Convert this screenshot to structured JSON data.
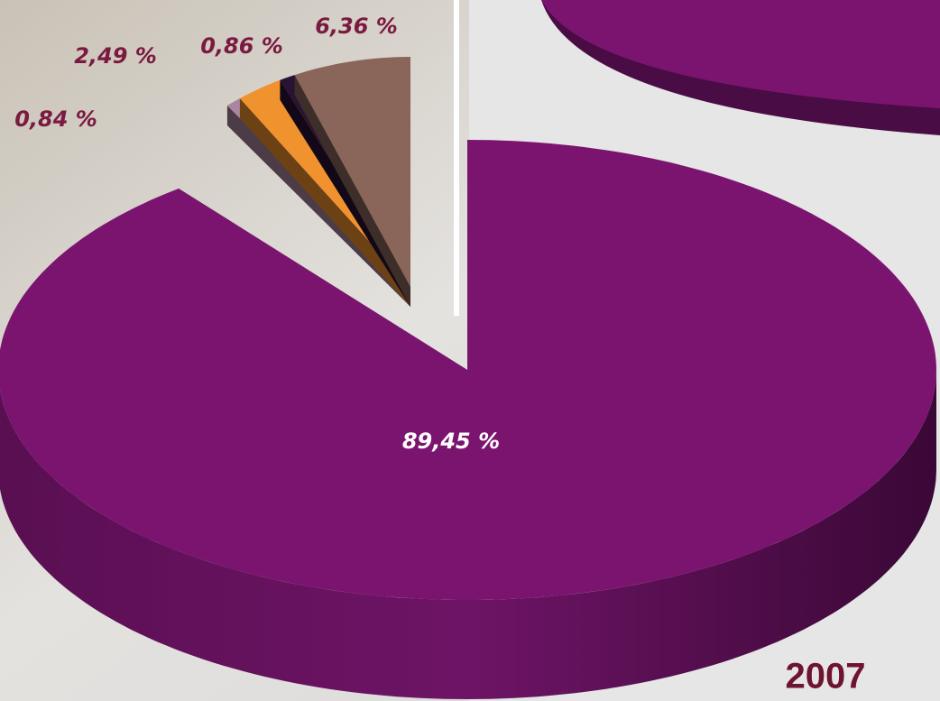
{
  "chart_data": {
    "type": "pie",
    "title": "2007",
    "values": [
      89.45,
      0.84,
      2.49,
      0.86,
      6.36
    ],
    "value_labels": [
      "89,45 %",
      "0,84 %",
      "2,49 %",
      "0,86 %",
      "6,36 %"
    ],
    "colors": [
      "#7b146f",
      "#a9869f",
      "#f0922e",
      "#2a1232",
      "#8a665a"
    ]
  }
}
